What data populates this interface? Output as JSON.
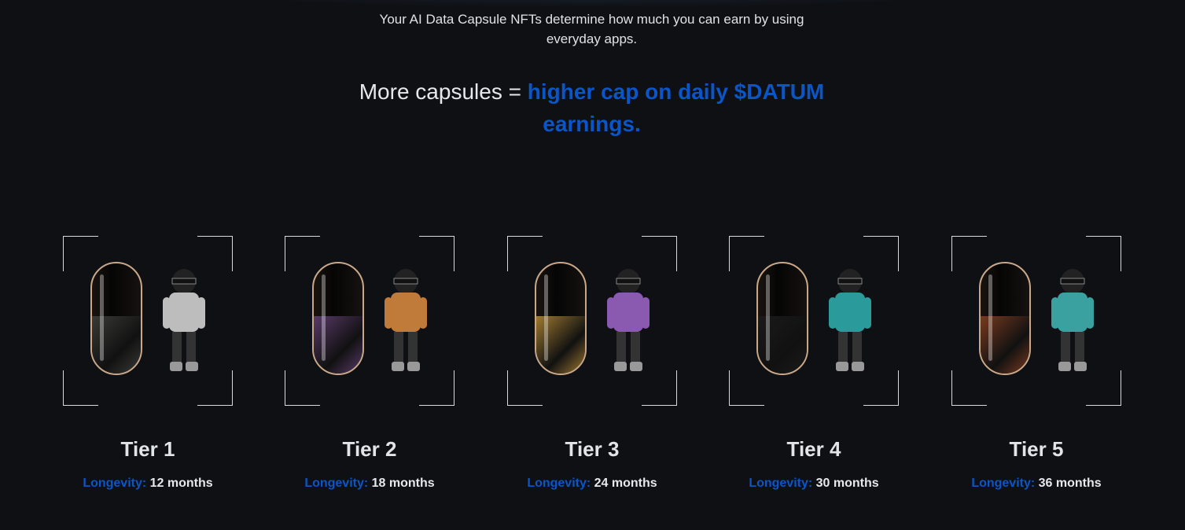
{
  "intro": "Your AI Data Capsule NFTs determine how much you can earn by using everyday apps.",
  "headline": {
    "plain": "More capsules = ",
    "highlight": "higher cap on daily $DATUM earnings."
  },
  "colors": {
    "accent": "#0a55c8",
    "background": "#0e1014"
  },
  "longevity_label": "Longevity:",
  "tiers": [
    {
      "name": "Tier 1",
      "longevity": "12 months",
      "capsule_fill": "#3a3a38",
      "figure_color": "#bdbdbd"
    },
    {
      "name": "Tier 2",
      "longevity": "18 months",
      "capsule_fill": "#5a3a6a",
      "figure_color": "#c07a3a"
    },
    {
      "name": "Tier 3",
      "longevity": "24 months",
      "capsule_fill": "#a07a30",
      "figure_color": "#8a5ab0"
    },
    {
      "name": "Tier 4",
      "longevity": "30 months",
      "capsule_fill": "#1a1a1a",
      "figure_color": "#2a9a9a"
    },
    {
      "name": "Tier 5",
      "longevity": "36 months",
      "capsule_fill": "#7a3a20",
      "figure_color": "#3aa0a0"
    }
  ]
}
